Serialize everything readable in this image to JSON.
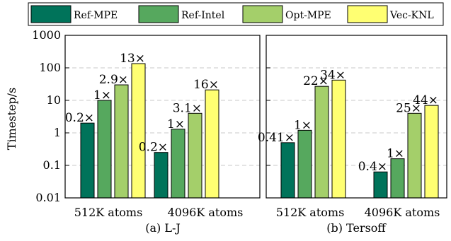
{
  "chart_data": [
    {
      "type": "bar",
      "title": "",
      "caption": "(a) L-J",
      "ylabel": "Timestep/s",
      "xlabel": "",
      "yscale": "log",
      "ylim": [
        0.01,
        1000
      ],
      "yticks": [
        "0.01",
        "0.1",
        "1",
        "10",
        "100",
        "1000"
      ],
      "grid": "horizontal dashed",
      "categories": [
        "512K atoms",
        "4096K atoms"
      ],
      "series": [
        {
          "name": "Ref-MPE",
          "values": [
            2.0,
            0.25
          ],
          "labels": [
            "0.2×",
            "0.2×"
          ]
        },
        {
          "name": "Ref-Intel",
          "values": [
            10,
            1.3
          ],
          "labels": [
            "1×",
            "1×"
          ]
        },
        {
          "name": "Opt-MPE",
          "values": [
            30,
            4.0
          ],
          "labels": [
            "2.9×",
            "3.1×"
          ]
        },
        {
          "name": "Vec-KNL",
          "values": [
            135,
            21
          ],
          "labels": [
            "13×",
            "16×"
          ]
        }
      ]
    },
    {
      "type": "bar",
      "title": "",
      "caption": "(b) Tersoff",
      "ylabel": "",
      "xlabel": "",
      "yscale": "log",
      "ylim": [
        0.01,
        1000
      ],
      "grid": "horizontal dashed",
      "categories": [
        "512K atoms",
        "4096K atoms"
      ],
      "series": [
        {
          "name": "Ref-MPE",
          "values": [
            0.5,
            0.063
          ],
          "labels": [
            "0.41×",
            "0.4×"
          ]
        },
        {
          "name": "Ref-Intel",
          "values": [
            1.2,
            0.16
          ],
          "labels": [
            "1×",
            "1×"
          ]
        },
        {
          "name": "Opt-MPE",
          "values": [
            27,
            4.0
          ],
          "labels": [
            "22×",
            "25×"
          ]
        },
        {
          "name": "Vec-KNL",
          "values": [
            42,
            7.0
          ],
          "labels": [
            "34×",
            "44×"
          ]
        }
      ]
    }
  ],
  "legend": {
    "placement": "top",
    "items": [
      {
        "label": "Ref-MPE",
        "color": "#00735a"
      },
      {
        "label": "Ref-Intel",
        "color": "#56a85e"
      },
      {
        "label": "Opt-MPE",
        "color": "#a4cf6a"
      },
      {
        "label": "Vec-KNL",
        "color": "#ffff72"
      }
    ]
  },
  "colors": {
    "grid": "#c8c8c8",
    "axis": "#000000"
  }
}
